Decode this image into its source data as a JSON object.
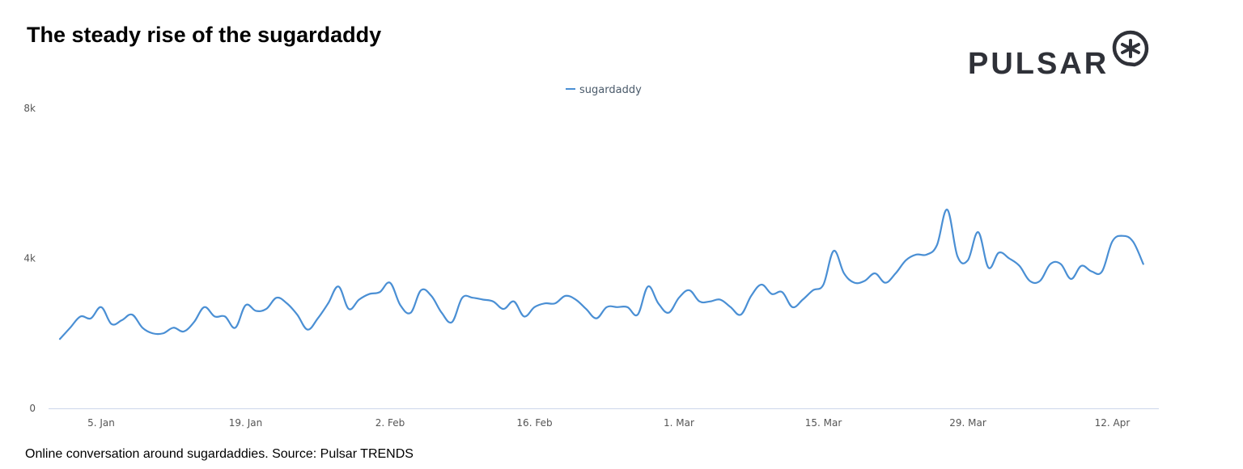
{
  "title": "The steady rise of the sugardaddy",
  "caption": "Online conversation around sugardaddies. Source: Pulsar TRENDS",
  "logo": {
    "text": "PULSAR",
    "icon": "asterisk-circle-icon"
  },
  "colors": {
    "line": "#4a8fd4",
    "axis": "#ccd6eb",
    "tick_text": "#555555",
    "legend_text": "#4a5a6a",
    "logo": "#2f3138"
  },
  "chart_data": {
    "type": "line",
    "title": "The steady rise of the sugardaddy",
    "xlabel": "",
    "ylabel": "",
    "x_start": "2020-01-01",
    "x_tick_labels": [
      "5. Jan",
      "19. Jan",
      "2. Feb",
      "16. Feb",
      "1. Mar",
      "15. Mar",
      "29. Mar",
      "12. Apr"
    ],
    "y_tick_labels": [
      "0",
      "4k",
      "8k"
    ],
    "ylim": [
      0,
      8000
    ],
    "grid": false,
    "legend": {
      "position": "top-center",
      "entries": [
        "sugardaddy"
      ]
    },
    "series": [
      {
        "name": "sugardaddy",
        "color": "#4a8fd4",
        "x": [
          "2020-01-01",
          "2020-01-02",
          "2020-01-03",
          "2020-01-04",
          "2020-01-05",
          "2020-01-06",
          "2020-01-07",
          "2020-01-08",
          "2020-01-09",
          "2020-01-10",
          "2020-01-11",
          "2020-01-12",
          "2020-01-13",
          "2020-01-14",
          "2020-01-15",
          "2020-01-16",
          "2020-01-17",
          "2020-01-18",
          "2020-01-19",
          "2020-01-20",
          "2020-01-21",
          "2020-01-22",
          "2020-01-23",
          "2020-01-24",
          "2020-01-25",
          "2020-01-26",
          "2020-01-27",
          "2020-01-28",
          "2020-01-29",
          "2020-01-30",
          "2020-01-31",
          "2020-02-01",
          "2020-02-02",
          "2020-02-03",
          "2020-02-04",
          "2020-02-05",
          "2020-02-06",
          "2020-02-07",
          "2020-02-08",
          "2020-02-09",
          "2020-02-10",
          "2020-02-11",
          "2020-02-12",
          "2020-02-13",
          "2020-02-14",
          "2020-02-15",
          "2020-02-16",
          "2020-02-17",
          "2020-02-18",
          "2020-02-19",
          "2020-02-20",
          "2020-02-21",
          "2020-02-22",
          "2020-02-23",
          "2020-02-24",
          "2020-02-25",
          "2020-02-26",
          "2020-02-27",
          "2020-02-28",
          "2020-02-29",
          "2020-03-01",
          "2020-03-02",
          "2020-03-03",
          "2020-03-04",
          "2020-03-05",
          "2020-03-06",
          "2020-03-07",
          "2020-03-08",
          "2020-03-09",
          "2020-03-10",
          "2020-03-11",
          "2020-03-12",
          "2020-03-13",
          "2020-03-14",
          "2020-03-15",
          "2020-03-16",
          "2020-03-17",
          "2020-03-18",
          "2020-03-19",
          "2020-03-20",
          "2020-03-21",
          "2020-03-22",
          "2020-03-23",
          "2020-03-24",
          "2020-03-25",
          "2020-03-26",
          "2020-03-27",
          "2020-03-28",
          "2020-03-29",
          "2020-03-30",
          "2020-03-31",
          "2020-04-01",
          "2020-04-02",
          "2020-04-03",
          "2020-04-04",
          "2020-04-05",
          "2020-04-06",
          "2020-04-07",
          "2020-04-08",
          "2020-04-09",
          "2020-04-10",
          "2020-04-11",
          "2020-04-12",
          "2020-04-13",
          "2020-04-14",
          "2020-04-15"
        ],
        "values": [
          1850,
          2150,
          2450,
          2400,
          2700,
          2250,
          2350,
          2500,
          2150,
          2000,
          2000,
          2150,
          2050,
          2300,
          2700,
          2450,
          2450,
          2150,
          2750,
          2600,
          2650,
          2950,
          2800,
          2500,
          2100,
          2400,
          2800,
          3250,
          2650,
          2900,
          3050,
          3100,
          3350,
          2750,
          2550,
          3150,
          3000,
          2550,
          2300,
          2950,
          2950,
          2900,
          2850,
          2650,
          2850,
          2450,
          2700,
          2800,
          2800,
          3000,
          2900,
          2650,
          2400,
          2700,
          2700,
          2700,
          2500,
          3250,
          2800,
          2550,
          2950,
          3150,
          2850,
          2850,
          2900,
          2700,
          2500,
          3000,
          3300,
          3050,
          3100,
          2700,
          2900,
          3150,
          3300,
          4200,
          3600,
          3350,
          3400,
          3600,
          3350,
          3600,
          3950,
          4100,
          4100,
          4350,
          5300,
          4050,
          3950,
          4700,
          3750,
          4150,
          4000,
          3800,
          3400,
          3400,
          3850,
          3850,
          3450,
          3800,
          3650,
          3650,
          4450,
          4600,
          4450,
          3850
        ]
      }
    ]
  }
}
